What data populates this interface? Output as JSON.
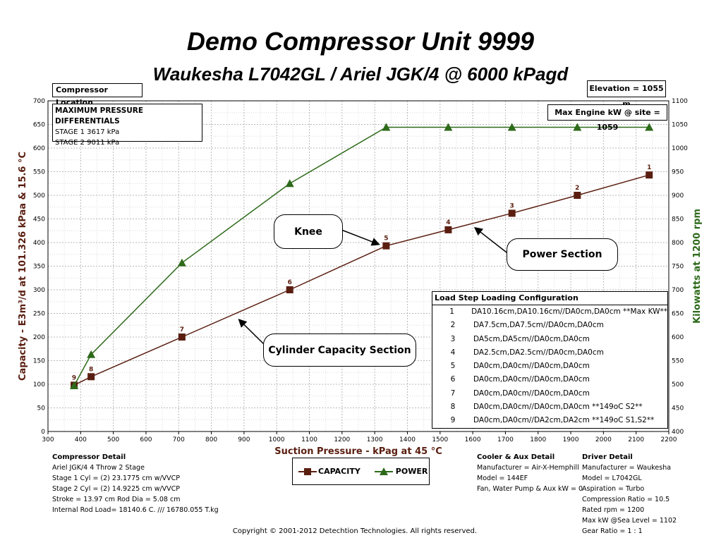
{
  "titles": {
    "main": "Demo  Compressor Unit  9999",
    "sub": "Waukesha L7042GL / Ariel JGK/4 @ 6000 kPagd"
  },
  "chart_data": {
    "type": "line",
    "xlabel": "Suction Pressure - kPag at 45 °C",
    "ylabel": "Capacity - E3m³/d at 101.326 kPaa & 15.6 °C",
    "y2label": "Kilowatts at 1200 rpm",
    "xlim": [
      300,
      2200
    ],
    "ylim": [
      0,
      700
    ],
    "y2lim": [
      400,
      1100
    ],
    "xticks": [
      300,
      400,
      500,
      600,
      700,
      800,
      900,
      1000,
      1100,
      1200,
      1300,
      1400,
      1500,
      1600,
      1700,
      1800,
      1900,
      2000,
      2100,
      2200
    ],
    "yticks": [
      0,
      50,
      100,
      150,
      200,
      250,
      300,
      350,
      400,
      450,
      500,
      550,
      600,
      650,
      700
    ],
    "y2ticks": [
      400,
      450,
      500,
      550,
      600,
      650,
      700,
      750,
      800,
      850,
      900,
      950,
      1000,
      1050,
      1100
    ],
    "grid": true,
    "series": [
      {
        "name": "CAPACITY",
        "color": "#5a1e10",
        "marker": "square",
        "points": [
          {
            "x": 380,
            "y": 98,
            "label": "9"
          },
          {
            "x": 432,
            "y": 116,
            "label": "8"
          },
          {
            "x": 710,
            "y": 200,
            "label": "7"
          },
          {
            "x": 1040,
            "y": 300,
            "label": "6"
          },
          {
            "x": 1335,
            "y": 393,
            "label": "5"
          },
          {
            "x": 1525,
            "y": 427,
            "label": "4"
          },
          {
            "x": 1720,
            "y": 462,
            "label": "3"
          },
          {
            "x": 1920,
            "y": 500,
            "label": "2"
          },
          {
            "x": 2140,
            "y": 543,
            "label": "1"
          }
        ]
      },
      {
        "name": "POWER",
        "color": "#2d6a1a",
        "marker": "triangle",
        "axis": "y2",
        "points": [
          {
            "x": 380,
            "y": 497
          },
          {
            "x": 432,
            "y": 563
          },
          {
            "x": 710,
            "y": 757
          },
          {
            "x": 1040,
            "y": 925
          },
          {
            "x": 1335,
            "y": 1044
          },
          {
            "x": 1525,
            "y": 1044
          },
          {
            "x": 1720,
            "y": 1044
          },
          {
            "x": 1920,
            "y": 1044
          },
          {
            "x": 2140,
            "y": 1044
          }
        ]
      }
    ]
  },
  "boxes": {
    "compressor_location": "Compressor Location",
    "elevation": "Elevation = 1055 m",
    "max_engine": "Max Engine kW @ site = 1059",
    "max_pressure_title": "MAXIMUM PRESSURE DIFFERENTIALS",
    "stage1": "STAGE 1   3617 kPa",
    "stage2": "STAGE 2   9011 kPa"
  },
  "callouts": {
    "knee": "Knee",
    "power_section": "Power Section",
    "cylinder_section": "Cylinder Capacity Section"
  },
  "load_step": {
    "title": "Load Step  Loading Configuration",
    "rows": [
      {
        "n": "1",
        "text": "DA10.16cm,DA10.16cm//DA0cm,DA0cm **Max KW**"
      },
      {
        "n": "2",
        "text": "DA7.5cm,DA7.5cm//DA0cm,DA0cm"
      },
      {
        "n": "3",
        "text": "DA5cm,DA5cm//DA0cm,DA0cm"
      },
      {
        "n": "4",
        "text": "DA2.5cm,DA2.5cm//DA0cm,DA0cm"
      },
      {
        "n": "5",
        "text": "DA0cm,DA0cm//DA0cm,DA0cm"
      },
      {
        "n": "6",
        "text": "DA0cm,DA0cm//DA0cm,DA0cm"
      },
      {
        "n": "7",
        "text": "DA0cm,DA0cm//DA0cm,DA0cm"
      },
      {
        "n": "8",
        "text": "DA0cm,DA0cm//DA0cm,DA0cm **149oC S2**"
      },
      {
        "n": "9",
        "text": "DA0cm,DA0cm//DA2cm,DA2cm **149oC S1,S2**"
      }
    ]
  },
  "compressor_detail": {
    "title": "Compressor Detail",
    "lines": [
      "Ariel JGK/4   4 Throw  2 Stage",
      "Stage 1 Cyl = (2) 23.1775 cm w/VVCP",
      "Stage 2 Cyl = (2) 14.9225 cm w/VVCP",
      "Stroke = 13.97 cm Rod Dia = 5.08 cm",
      "Internal Rod Load= 18140.6 C. /// 16780.055 T.kg"
    ]
  },
  "cooler_detail": {
    "title": "Cooler & Aux Detail",
    "lines": [
      "Manufacturer = Air-X-Hemphill",
      "Model = 144EF",
      "Fan, Water Pump & Aux kW = 0"
    ]
  },
  "driver_detail": {
    "title": "Driver Detail",
    "lines": [
      "Manufacturer = Waukesha",
      "Model = L7042GL",
      "Aspiration = Turbo",
      "Compression Ratio = 10.5",
      "Rated rpm = 1200",
      "Max kW @Sea Level = 1102",
      "Gear Ratio = 1 : 1"
    ]
  },
  "legend": {
    "capacity": "CAPACITY",
    "power": "POWER"
  },
  "copyright": "Copyright © 2001-2012 Detechtion Technologies. All rights reserved."
}
